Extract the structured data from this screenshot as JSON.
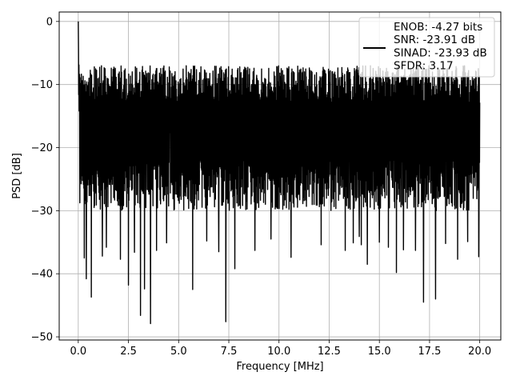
{
  "chart_data": {
    "type": "line",
    "title": "",
    "xlabel": "Frequency [MHz]",
    "ylabel": "PSD [dB]",
    "xlim": [
      -0.95,
      21.05
    ],
    "ylim": [
      -50.5,
      1.5
    ],
    "xticks": [
      0.0,
      2.5,
      5.0,
      7.5,
      10.0,
      12.5,
      15.0,
      17.5,
      20.0
    ],
    "xtick_labels": [
      "0.0",
      "2.5",
      "5.0",
      "7.5",
      "10.0",
      "12.5",
      "15.0",
      "17.5",
      "20.0"
    ],
    "yticks": [
      0,
      -10,
      -20,
      -30,
      -40,
      -50
    ],
    "ytick_labels": [
      "0",
      "−10",
      "−20",
      "−30",
      "−40",
      "−50"
    ],
    "grid": true,
    "legend_position": "top-right",
    "legend_lines": [
      "ENOB: -4.27 bits",
      "SNR: -23.91 dB",
      "SINAD: -23.93 dB",
      "SFDR: 3.17"
    ],
    "series": [
      {
        "name": "ENOB: -4.27 bits\nSNR: -23.91 dB\nSINAD: -23.93 dB\nSFDR: 3.17",
        "color": "#000000",
        "x_start": 0.0,
        "x_end": 20.0,
        "peak": {
          "x": 0.0,
          "y": 0.0
        },
        "deep_minima": [
          {
            "x": 0.3,
            "y": -37.5
          },
          {
            "x": 0.4,
            "y": -40.8
          },
          {
            "x": 0.65,
            "y": -43.7
          },
          {
            "x": 1.2,
            "y": -37.2
          },
          {
            "x": 1.4,
            "y": -35.8
          },
          {
            "x": 2.1,
            "y": -37.7
          },
          {
            "x": 2.5,
            "y": -41.8
          },
          {
            "x": 2.8,
            "y": -36.6
          },
          {
            "x": 3.1,
            "y": -46.6
          },
          {
            "x": 3.3,
            "y": -42.4
          },
          {
            "x": 3.6,
            "y": -47.9
          },
          {
            "x": 3.9,
            "y": -36.3
          },
          {
            "x": 4.4,
            "y": -35.1
          },
          {
            "x": 5.7,
            "y": -42.5
          },
          {
            "x": 6.4,
            "y": -34.8
          },
          {
            "x": 7.0,
            "y": -36.5
          },
          {
            "x": 7.35,
            "y": -47.6
          },
          {
            "x": 7.8,
            "y": -39.2
          },
          {
            "x": 8.8,
            "y": -36.3
          },
          {
            "x": 9.6,
            "y": -34.5
          },
          {
            "x": 10.6,
            "y": -37.4
          },
          {
            "x": 12.1,
            "y": -35.4
          },
          {
            "x": 13.3,
            "y": -36.3
          },
          {
            "x": 13.7,
            "y": -35.1
          },
          {
            "x": 14.0,
            "y": -34.1
          },
          {
            "x": 14.1,
            "y": -35.4
          },
          {
            "x": 14.4,
            "y": -38.5
          },
          {
            "x": 15.0,
            "y": -35.0
          },
          {
            "x": 15.45,
            "y": -35.8
          },
          {
            "x": 15.85,
            "y": -39.8
          },
          {
            "x": 16.2,
            "y": -36.2
          },
          {
            "x": 16.8,
            "y": -36.3
          },
          {
            "x": 17.2,
            "y": -44.5
          },
          {
            "x": 17.8,
            "y": -44.0
          },
          {
            "x": 18.3,
            "y": -35.2
          },
          {
            "x": 18.9,
            "y": -37.7
          },
          {
            "x": 19.4,
            "y": -34.9
          },
          {
            "x": 19.95,
            "y": -37.3
          }
        ]
      }
    ]
  }
}
